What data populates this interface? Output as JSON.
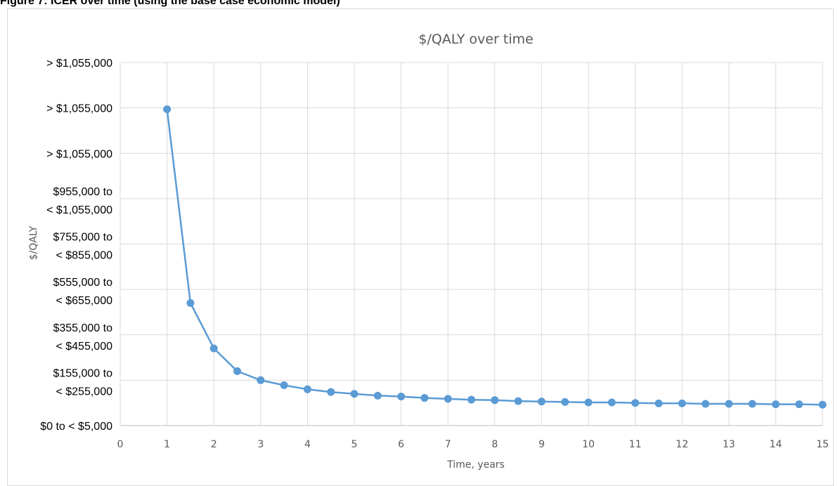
{
  "figure_caption": "Figure 7: ICER over time (using the base case economic model)",
  "chart_data": {
    "type": "line",
    "title": "$/QALY over time",
    "xlabel": "Time, years",
    "ylabel": "$/QALY",
    "xlim": [
      0,
      15
    ],
    "ylim": [
      0,
      8
    ],
    "x_ticks": [
      0,
      1,
      2,
      3,
      4,
      5,
      6,
      7,
      8,
      9,
      10,
      11,
      12,
      13,
      14,
      15
    ],
    "y_ticks": [
      {
        "value": 0,
        "lines": [
          "$0 to < $5,000"
        ]
      },
      {
        "value": 1,
        "lines": [
          "$155,000 to",
          "< $255,000"
        ]
      },
      {
        "value": 2,
        "lines": [
          "$355,000 to",
          "< $455,000"
        ]
      },
      {
        "value": 3,
        "lines": [
          "$555,000 to",
          "< $655,000"
        ]
      },
      {
        "value": 4,
        "lines": [
          "$755,000 to",
          "< $855,000"
        ]
      },
      {
        "value": 5,
        "lines": [
          "$955,000 to",
          "< $1,055,000"
        ]
      },
      {
        "value": 6,
        "lines": [
          "> $1,055,000"
        ]
      },
      {
        "value": 7,
        "lines": [
          "> $1,055,000"
        ]
      },
      {
        "value": 8,
        "lines": [
          "> $1,055,000"
        ]
      }
    ],
    "grid": true,
    "series": [
      {
        "color": "#5b9bd5",
        "x": [
          1,
          1.5,
          2,
          2.5,
          3,
          3.5,
          4,
          4.5,
          5,
          5.5,
          6,
          6.5,
          7,
          7.5,
          8,
          8.5,
          9,
          9.5,
          10,
          10.5,
          11,
          11.5,
          12,
          12.5,
          13,
          13.5,
          14,
          14.5,
          15
        ],
        "y": [
          6.97,
          2.7,
          1.7,
          1.2,
          1.0,
          0.89,
          0.8,
          0.74,
          0.7,
          0.66,
          0.64,
          0.61,
          0.59,
          0.57,
          0.56,
          0.54,
          0.53,
          0.52,
          0.51,
          0.51,
          0.5,
          0.49,
          0.49,
          0.48,
          0.48,
          0.48,
          0.47,
          0.47,
          0.46
        ]
      }
    ]
  }
}
